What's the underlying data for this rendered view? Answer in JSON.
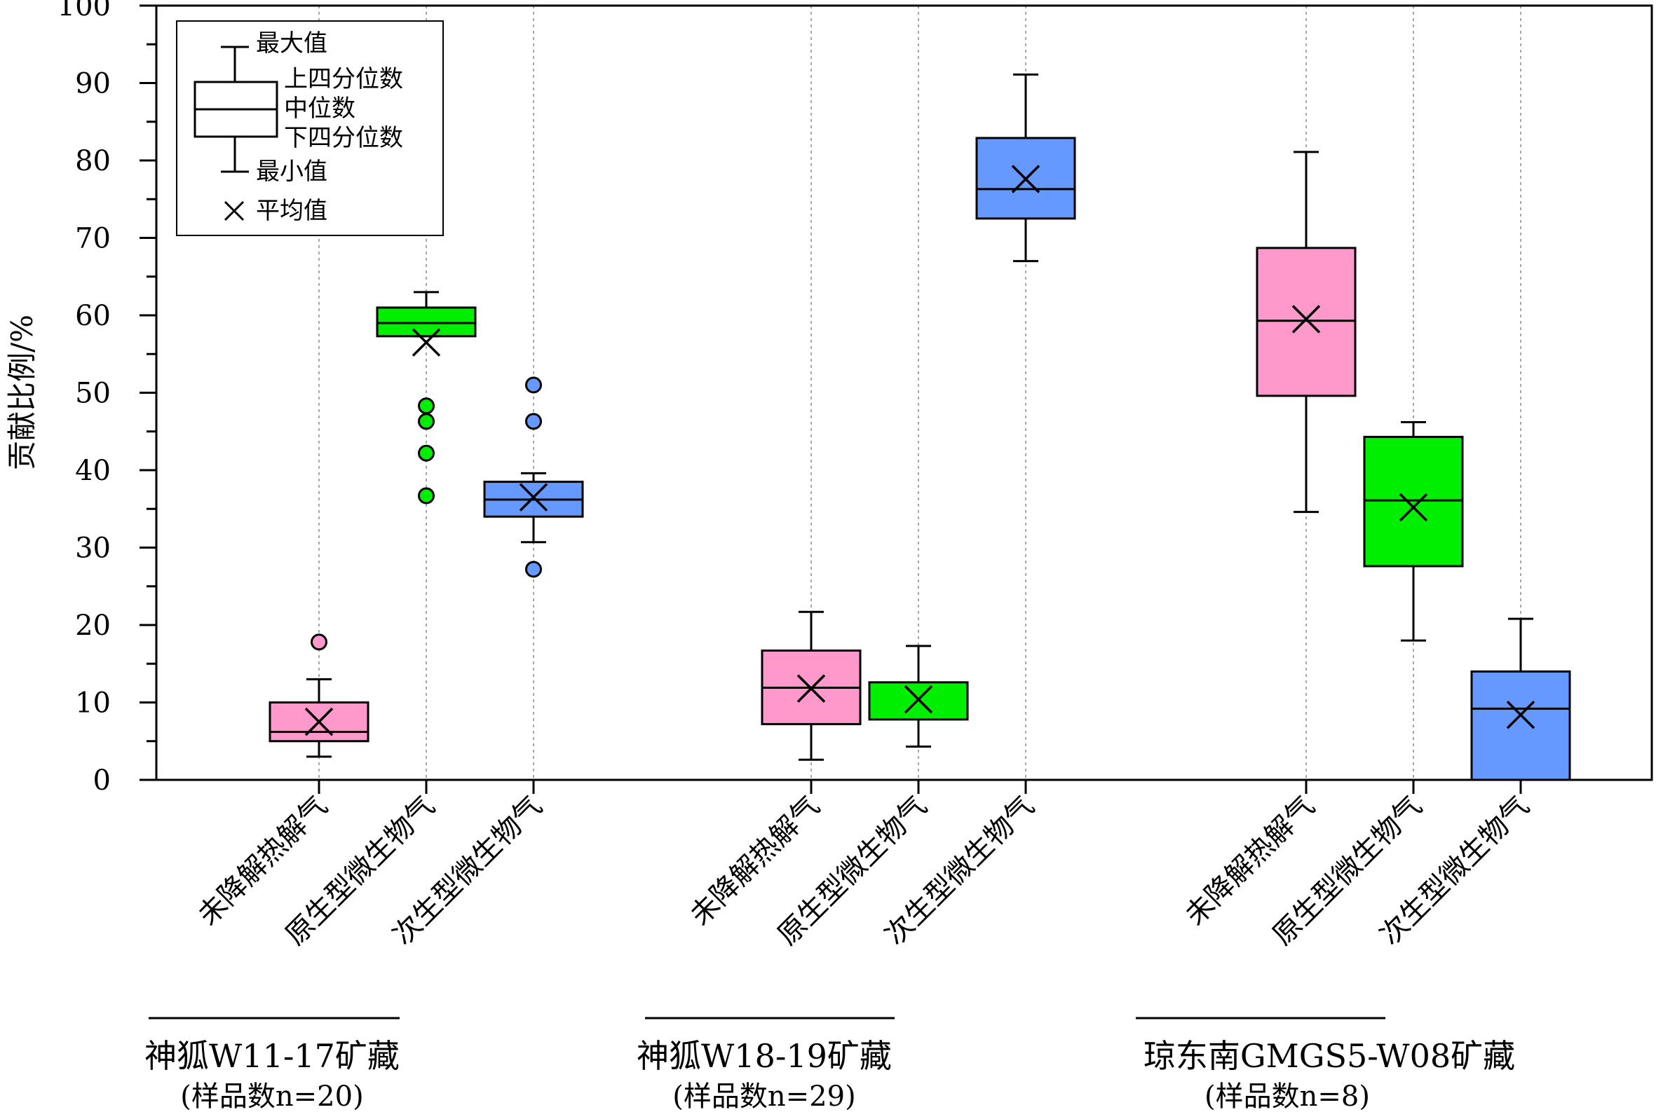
{
  "chart_data": {
    "type": "box",
    "ylabel": "贡献比例/%",
    "ylim": [
      0,
      100
    ],
    "y_ticks": [
      "0",
      "10",
      "20",
      "30",
      "40",
      "50",
      "60",
      "70",
      "80",
      "90",
      "100"
    ],
    "grid": "vertical dotted guide lines at each box position",
    "legend": {
      "placement": "top-left",
      "max_label": "最大值",
      "q3_label": "上四分位数",
      "median_label": "中位数",
      "q1_label": "下四分位数",
      "min_label": "最小值",
      "mean_label": "平均值"
    },
    "colors": {
      "未降解热解气": "#FF99CC",
      "原生型微生物气": "#00EE00",
      "次生型微生物气": "#6699FF"
    },
    "groups": [
      {
        "name": "神狐W11-17矿藏",
        "count_text": "(样品数n=20)",
        "boxes": [
          {
            "category": "未降解热解气",
            "min": 3,
            "q1": 5,
            "median": 6.2,
            "q3": 10,
            "max": 13,
            "mean": 7.5,
            "outliers": [
              17.8
            ]
          },
          {
            "category": "原生型微生物气",
            "min": 57.3,
            "q1": 57.3,
            "median": 59,
            "q3": 61,
            "max": 63,
            "mean": 56.5,
            "outliers": [
              48.3,
              46.3,
              42.2,
              36.7
            ]
          },
          {
            "category": "次生型微生物气",
            "min": 30.7,
            "q1": 34,
            "median": 36.2,
            "q3": 38.5,
            "max": 39.6,
            "mean": 36.5,
            "outliers": [
              51,
              46.3,
              27.2
            ]
          }
        ]
      },
      {
        "name": "神狐W18-19矿藏",
        "count_text": "(样品数n=29)",
        "boxes": [
          {
            "category": "未降解热解气",
            "min": 2.6,
            "q1": 7.2,
            "median": 11.9,
            "q3": 16.7,
            "max": 21.7,
            "mean": 11.8,
            "outliers": []
          },
          {
            "category": "原生型微生物气",
            "min": 4.3,
            "q1": 7.8,
            "median": null,
            "q3": 12.6,
            "max": 17.3,
            "mean": 10.4,
            "outliers": []
          },
          {
            "category": "次生型微生物气",
            "min": 67,
            "q1": 72.5,
            "median": 76.3,
            "q3": 82.9,
            "max": 91.1,
            "mean": 77.6,
            "outliers": []
          }
        ]
      },
      {
        "name": "琼东南GMGS5-W08矿藏",
        "count_text": "(样品数n=8)",
        "boxes": [
          {
            "category": "未降解热解气",
            "min": 34.6,
            "q1": 49.6,
            "median": 59.3,
            "q3": 68.7,
            "max": 81.1,
            "mean": 59.5,
            "outliers": []
          },
          {
            "category": "原生型微生物气",
            "min": 18,
            "q1": 27.6,
            "median": 36.1,
            "q3": 44.3,
            "max": 46.2,
            "mean": 35.2,
            "outliers": []
          },
          {
            "category": "次生型微生物气",
            "min": 0,
            "q1": 0,
            "median": 9.2,
            "q3": 14,
            "max": 20.8,
            "mean": 8.4,
            "outliers": []
          }
        ]
      }
    ]
  }
}
